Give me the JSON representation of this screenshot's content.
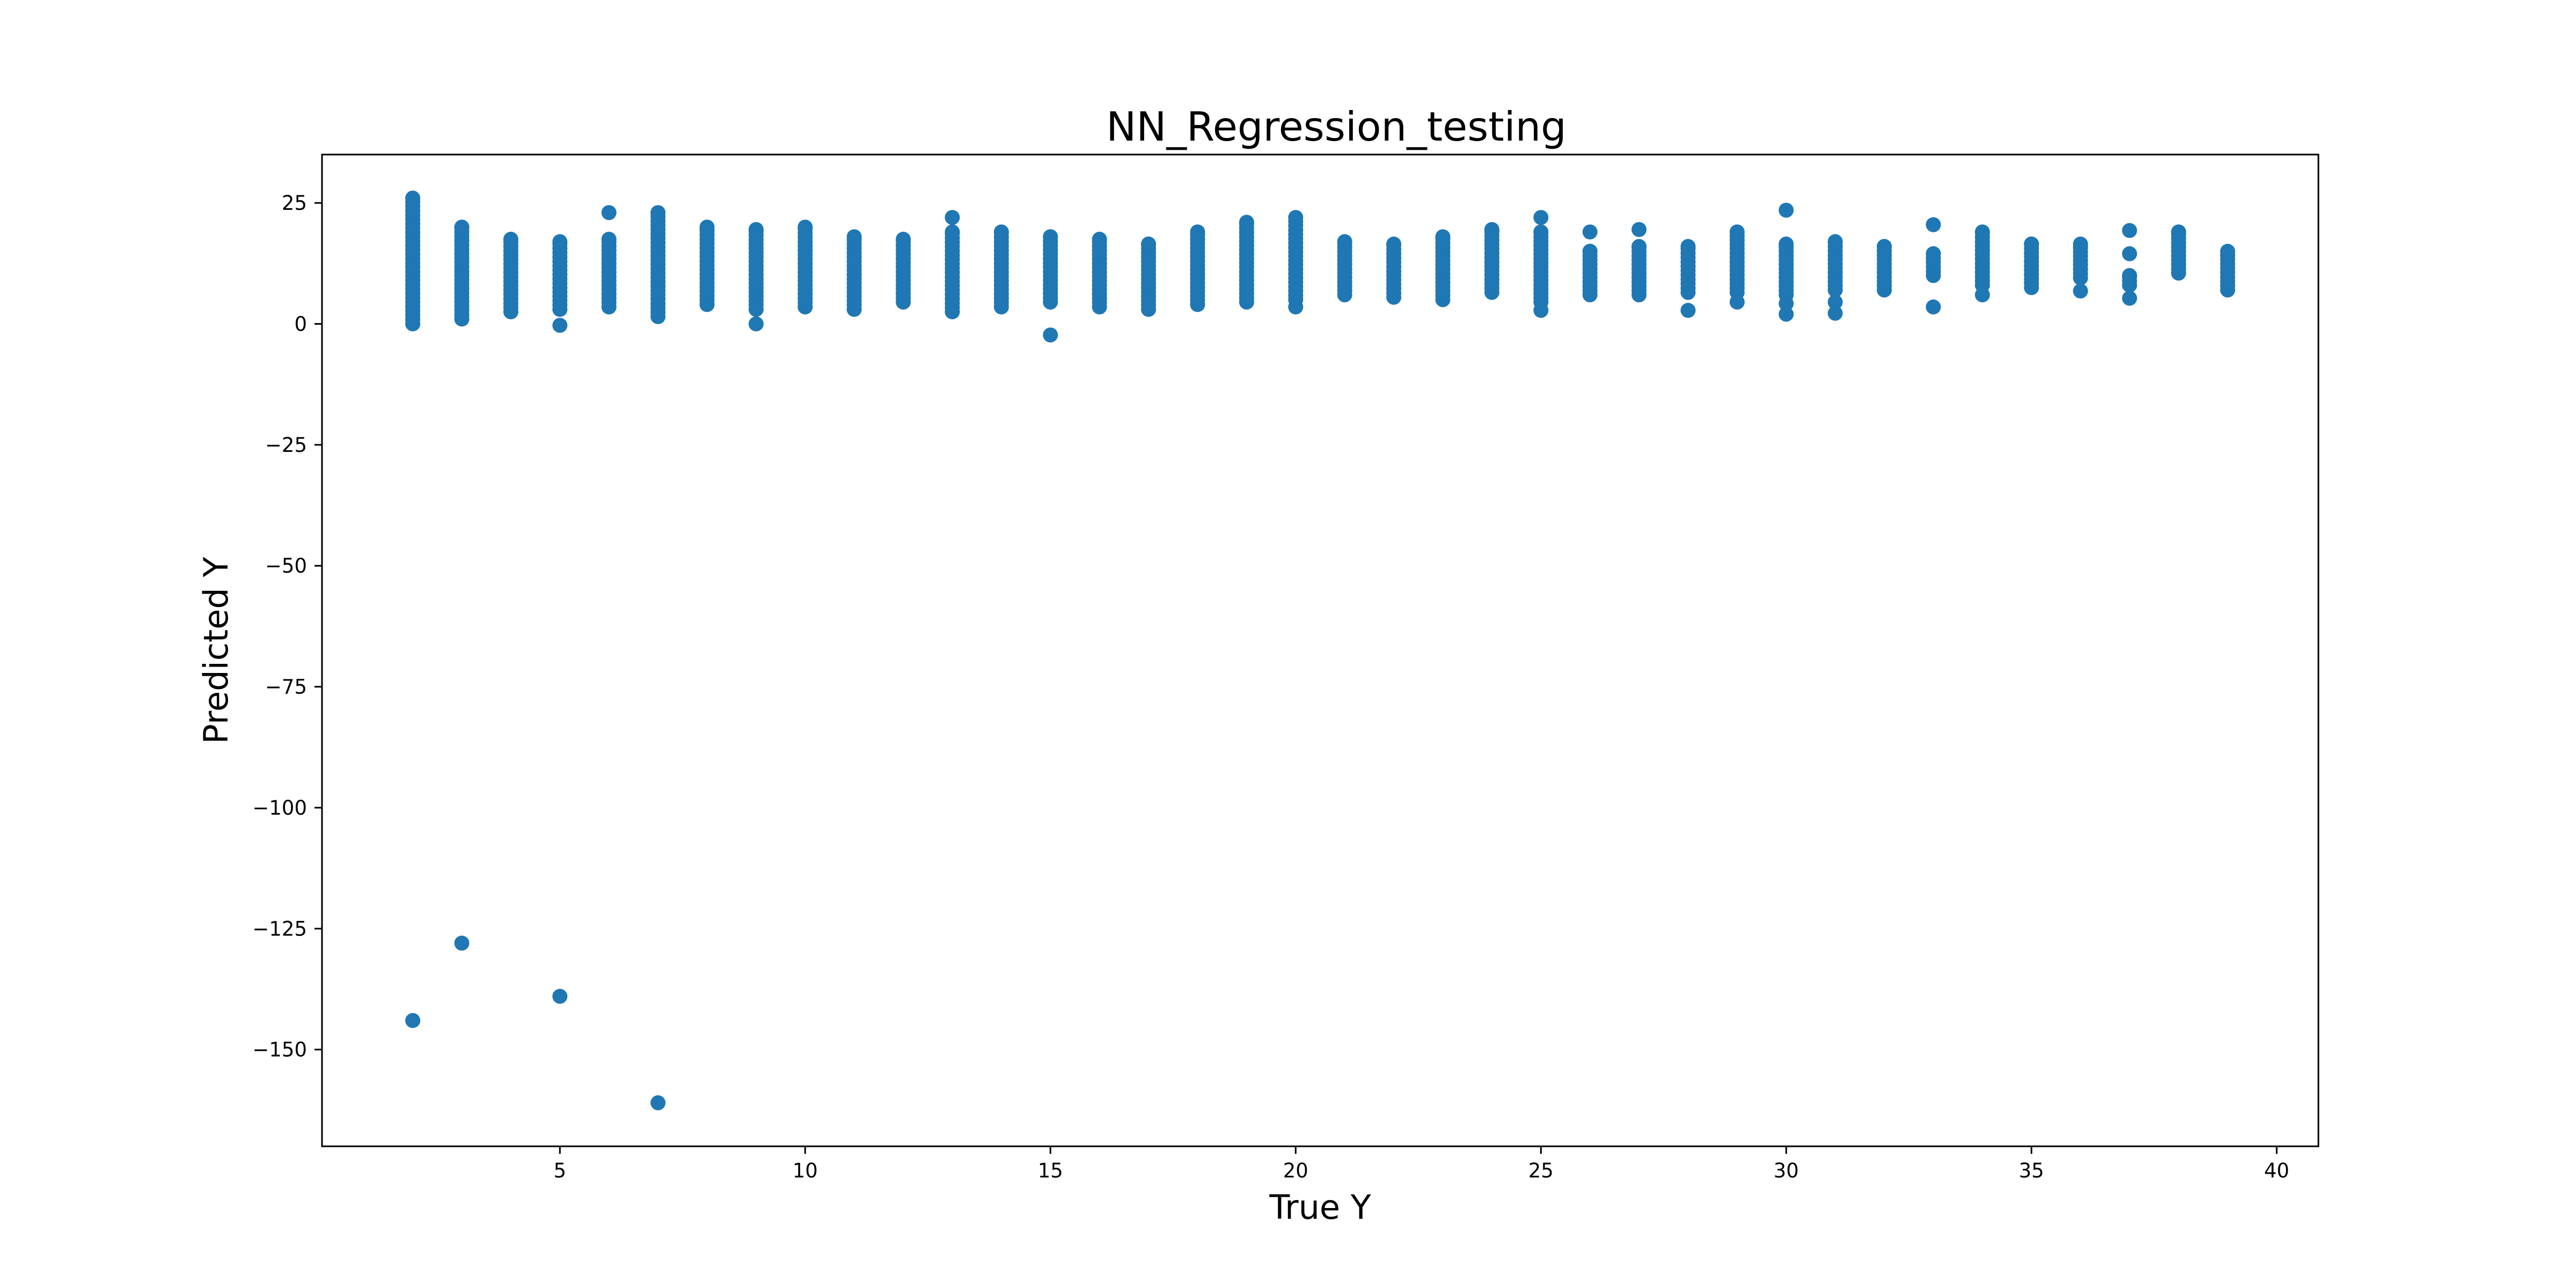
{
  "chart_data": {
    "type": "scatter",
    "title": "NN_Regression_testing",
    "xlabel": "True Y",
    "ylabel": "Predicted Y",
    "xlim": [
      0.15,
      40.85
    ],
    "ylim": [
      -170,
      35
    ],
    "xticks": [
      5,
      10,
      15,
      20,
      25,
      30,
      35,
      40
    ],
    "yticks": [
      25,
      0,
      -25,
      -50,
      -75,
      -100,
      -125,
      -150
    ],
    "xtick_labels": [
      "5",
      "10",
      "15",
      "20",
      "25",
      "30",
      "35",
      "40"
    ],
    "ytick_labels": [
      "25",
      "0",
      "−25",
      "−50",
      "−75",
      "−100",
      "−125",
      "−150"
    ],
    "grid": false,
    "color": "#1f77b4",
    "clusters": [
      {
        "x": 2,
        "min": 0,
        "max": 26
      },
      {
        "x": 3,
        "min": 1,
        "max": 20
      },
      {
        "x": 4,
        "min": 2.5,
        "max": 17.5
      },
      {
        "x": 5,
        "min": 3,
        "max": 17
      },
      {
        "x": 6,
        "min": 3.5,
        "max": 17.5
      },
      {
        "x": 7,
        "min": 1.5,
        "max": 23
      },
      {
        "x": 8,
        "min": 4,
        "max": 20
      },
      {
        "x": 9,
        "min": 3,
        "max": 19.5
      },
      {
        "x": 10,
        "min": 3.5,
        "max": 20
      },
      {
        "x": 11,
        "min": 3,
        "max": 18
      },
      {
        "x": 12,
        "min": 4.5,
        "max": 17.5
      },
      {
        "x": 13,
        "min": 2.5,
        "max": 19
      },
      {
        "x": 14,
        "min": 3.5,
        "max": 19
      },
      {
        "x": 15,
        "min": 4.5,
        "max": 18
      },
      {
        "x": 16,
        "min": 3.5,
        "max": 17.5
      },
      {
        "x": 17,
        "min": 3,
        "max": 16.5
      },
      {
        "x": 18,
        "min": 4,
        "max": 19
      },
      {
        "x": 19,
        "min": 4.5,
        "max": 21
      },
      {
        "x": 20,
        "min": 5,
        "max": 22
      },
      {
        "x": 21,
        "min": 6,
        "max": 17
      },
      {
        "x": 22,
        "min": 5.5,
        "max": 16.5
      },
      {
        "x": 23,
        "min": 5,
        "max": 18
      },
      {
        "x": 24,
        "min": 6.5,
        "max": 19.5
      },
      {
        "x": 25,
        "min": 4.5,
        "max": 19
      },
      {
        "x": 26,
        "min": 6,
        "max": 15
      },
      {
        "x": 27,
        "min": 6,
        "max": 16
      },
      {
        "x": 28,
        "min": 6.5,
        "max": 16
      },
      {
        "x": 29,
        "min": 6.5,
        "max": 19
      },
      {
        "x": 30,
        "min": 6,
        "max": 16.5
      },
      {
        "x": 31,
        "min": 7,
        "max": 17
      },
      {
        "x": 32,
        "min": 7,
        "max": 16
      },
      {
        "x": 33,
        "min": 10,
        "max": 14.5
      },
      {
        "x": 34,
        "min": 8,
        "max": 19
      },
      {
        "x": 35,
        "min": 7.5,
        "max": 16.5
      },
      {
        "x": 36,
        "min": 9.5,
        "max": 16.5
      },
      {
        "x": 37,
        "min": 8,
        "max": 10
      },
      {
        "x": 38,
        "min": 10.5,
        "max": 19
      },
      {
        "x": 39,
        "min": 7,
        "max": 15
      }
    ],
    "outliers": [
      [
        2,
        -144
      ],
      [
        3,
        -128
      ],
      [
        5,
        -139
      ],
      [
        7,
        -161
      ],
      [
        5,
        -0.3
      ],
      [
        9,
        0
      ],
      [
        15,
        -2.3
      ],
      [
        6,
        23
      ],
      [
        13,
        22
      ],
      [
        20,
        3.5
      ],
      [
        25,
        22
      ],
      [
        25,
        2.8
      ],
      [
        26,
        19
      ],
      [
        27,
        19.5
      ],
      [
        28,
        2.8
      ],
      [
        29,
        4.5
      ],
      [
        30,
        23.5
      ],
      [
        30,
        4.2
      ],
      [
        30,
        2
      ],
      [
        31,
        4.5
      ],
      [
        31,
        2.2
      ],
      [
        33,
        20.5
      ],
      [
        33,
        3.5
      ],
      [
        34,
        6
      ],
      [
        36,
        6.8
      ],
      [
        37,
        19.3
      ],
      [
        37,
        14.5
      ],
      [
        37,
        5.3
      ],
      [
        35,
        16.5
      ]
    ]
  }
}
